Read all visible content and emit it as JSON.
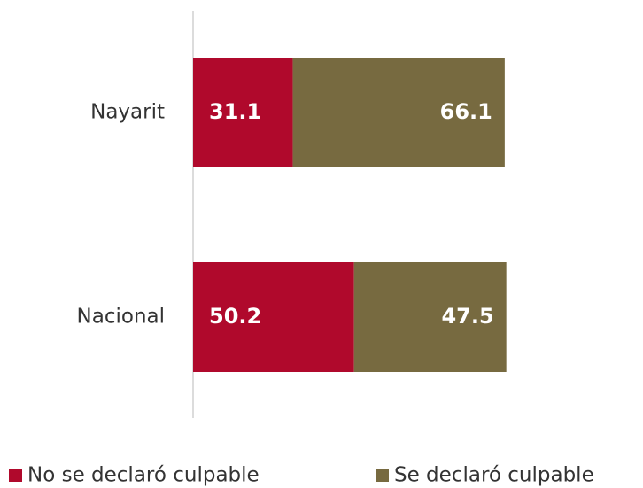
{
  "chart_data": {
    "type": "stacked_bar_horizontal",
    "categories": [
      "Nayarit",
      "Nacional"
    ],
    "series": [
      {
        "name": "No se declaró culpable",
        "color": "#b0092c",
        "values": [
          31.1,
          50.2
        ]
      },
      {
        "name": "Se declaró culpable",
        "color": "#776a40",
        "values": [
          66.1,
          47.5
        ]
      }
    ],
    "xlim": [
      0,
      100
    ],
    "legend": "bottom"
  }
}
